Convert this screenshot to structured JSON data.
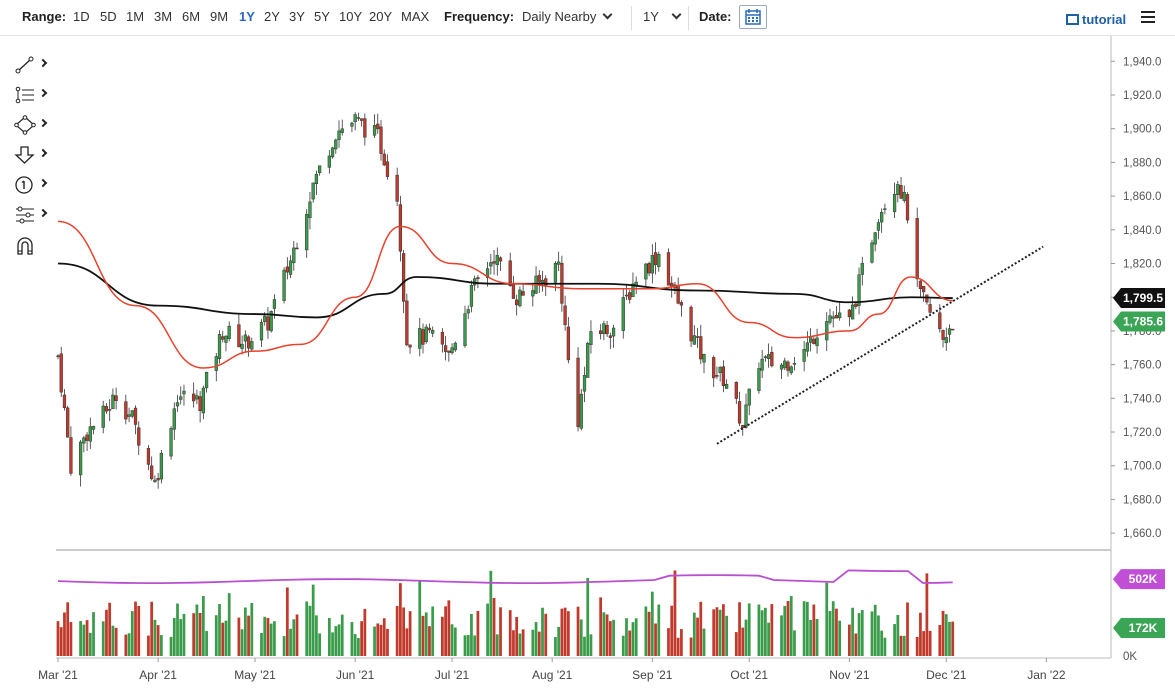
{
  "toolbar": {
    "range_label": "Range:",
    "ranges": [
      "1D",
      "5D",
      "1M",
      "3M",
      "6M",
      "9M",
      "1Y",
      "2Y",
      "3Y",
      "5Y",
      "10Y",
      "20Y",
      "MAX"
    ],
    "active_range": "1Y",
    "frequency_label": "Frequency:",
    "frequency_value": "Daily Nearby",
    "period_value": "1Y",
    "date_label": "Date:",
    "tutorial_label": "tutorial"
  },
  "colors": {
    "up": "#3a9c4a",
    "down": "#c0392b",
    "ma_fast": "#e8412c",
    "ma_slow": "#111111",
    "volume_line": "#b94fd0",
    "price_badge": "#3aa655",
    "ma_badge": "#111111",
    "vol_badge": "#c04fd6",
    "vol_last_badge": "#3aa655"
  },
  "chart_data": {
    "type": "candlestick",
    "y_ticks": [
      "1,660.0",
      "1,680.0",
      "1,700.0",
      "1,720.0",
      "1,740.0",
      "1,760.0",
      "1,780.0",
      "1,800.0",
      "1,820.0",
      "1,840.0",
      "1,860.0",
      "1,880.0",
      "1,900.0",
      "1,920.0",
      "1,940.0"
    ],
    "ylim": [
      1650,
      1955
    ],
    "x_ticks": [
      "Mar '21",
      "Apr '21",
      "May '21",
      "Jun '21",
      "Jul '21",
      "Aug '21",
      "Sep '21",
      "Oct '21",
      "Nov '21",
      "Dec '21",
      "Jan '22"
    ],
    "x_tick_dates": [
      "2021-03-01",
      "2021-04-01",
      "2021-05-01",
      "2021-06-01",
      "2021-07-01",
      "2021-08-01",
      "2021-09-01",
      "2021-10-01",
      "2021-11-01",
      "2021-12-01",
      "2022-01-01"
    ],
    "xlim": [
      "2021-03-01",
      "2022-01-21"
    ],
    "close_path": [
      [
        "2021-03-01",
        1765
      ],
      [
        "2021-03-05",
        1700
      ],
      [
        "2021-03-10",
        1720
      ],
      [
        "2021-03-15",
        1730
      ],
      [
        "2021-03-19",
        1742
      ],
      [
        "2021-03-24",
        1728
      ],
      [
        "2021-03-31",
        1690
      ],
      [
        "2021-04-07",
        1742
      ],
      [
        "2021-04-14",
        1738
      ],
      [
        "2021-04-21",
        1780
      ],
      [
        "2021-04-28",
        1773
      ],
      [
        "2021-05-05",
        1785
      ],
      [
        "2021-05-12",
        1822
      ],
      [
        "2021-05-19",
        1867
      ],
      [
        "2021-05-26",
        1898
      ],
      [
        "2021-06-01",
        1905
      ],
      [
        "2021-06-08",
        1895
      ],
      [
        "2021-06-14",
        1860
      ],
      [
        "2021-06-17",
        1775
      ],
      [
        "2021-06-24",
        1777
      ],
      [
        "2021-06-30",
        1765
      ],
      [
        "2021-07-07",
        1803
      ],
      [
        "2021-07-14",
        1825
      ],
      [
        "2021-07-21",
        1800
      ],
      [
        "2021-07-28",
        1808
      ],
      [
        "2021-08-03",
        1820
      ],
      [
        "2021-08-06",
        1762
      ],
      [
        "2021-08-09",
        1728
      ],
      [
        "2021-08-13",
        1780
      ],
      [
        "2021-08-20",
        1782
      ],
      [
        "2021-08-27",
        1812
      ],
      [
        "2021-09-03",
        1826
      ],
      [
        "2021-09-10",
        1792
      ],
      [
        "2021-09-17",
        1762
      ],
      [
        "2021-09-24",
        1750
      ],
      [
        "2021-09-29",
        1725
      ],
      [
        "2021-10-04",
        1762
      ],
      [
        "2021-10-11",
        1760
      ],
      [
        "2021-10-18",
        1768
      ],
      [
        "2021-10-25",
        1790
      ],
      [
        "2021-11-01",
        1785
      ],
      [
        "2021-11-05",
        1815
      ],
      [
        "2021-11-10",
        1850
      ],
      [
        "2021-11-16",
        1870
      ],
      [
        "2021-11-19",
        1850
      ],
      [
        "2021-11-22",
        1805
      ],
      [
        "2021-11-26",
        1790
      ],
      [
        "2021-11-30",
        1775
      ],
      [
        "2021-12-02",
        1783
      ],
      [
        "2021-12-03",
        1785.6
      ]
    ],
    "last_price": "1,785.6",
    "ma_value": "1,799.5",
    "moving_averages": {
      "fast": [
        [
          "2021-03-01",
          1845
        ],
        [
          "2021-03-25",
          1795
        ],
        [
          "2021-04-15",
          1758
        ],
        [
          "2021-05-01",
          1768
        ],
        [
          "2021-05-15",
          1772
        ],
        [
          "2021-06-01",
          1800
        ],
        [
          "2021-06-15",
          1842
        ],
        [
          "2021-07-01",
          1820
        ],
        [
          "2021-07-20",
          1808
        ],
        [
          "2021-08-10",
          1805
        ],
        [
          "2021-09-01",
          1805
        ],
        [
          "2021-09-15",
          1808
        ],
        [
          "2021-10-01",
          1785
        ],
        [
          "2021-10-15",
          1776
        ],
        [
          "2021-11-01",
          1780
        ],
        [
          "2021-11-10",
          1790
        ],
        [
          "2021-11-20",
          1812
        ],
        [
          "2021-12-03",
          1798
        ]
      ],
      "slow": [
        [
          "2021-03-01",
          1820
        ],
        [
          "2021-04-01",
          1795
        ],
        [
          "2021-05-01",
          1790
        ],
        [
          "2021-05-20",
          1788
        ],
        [
          "2021-06-10",
          1802
        ],
        [
          "2021-06-20",
          1812
        ],
        [
          "2021-07-15",
          1808
        ],
        [
          "2021-08-15",
          1808
        ],
        [
          "2021-09-15",
          1804
        ],
        [
          "2021-10-15",
          1802
        ],
        [
          "2021-11-01",
          1797
        ],
        [
          "2021-11-20",
          1800
        ],
        [
          "2021-12-03",
          1799.5
        ]
      ]
    },
    "trendline": [
      [
        "2021-09-21",
        1713
      ],
      [
        "2021-12-31",
        1830
      ]
    ],
    "volume": {
      "last_avg": "502K",
      "last": "172K",
      "zero": "0K",
      "avg_level": 0.72
    }
  }
}
